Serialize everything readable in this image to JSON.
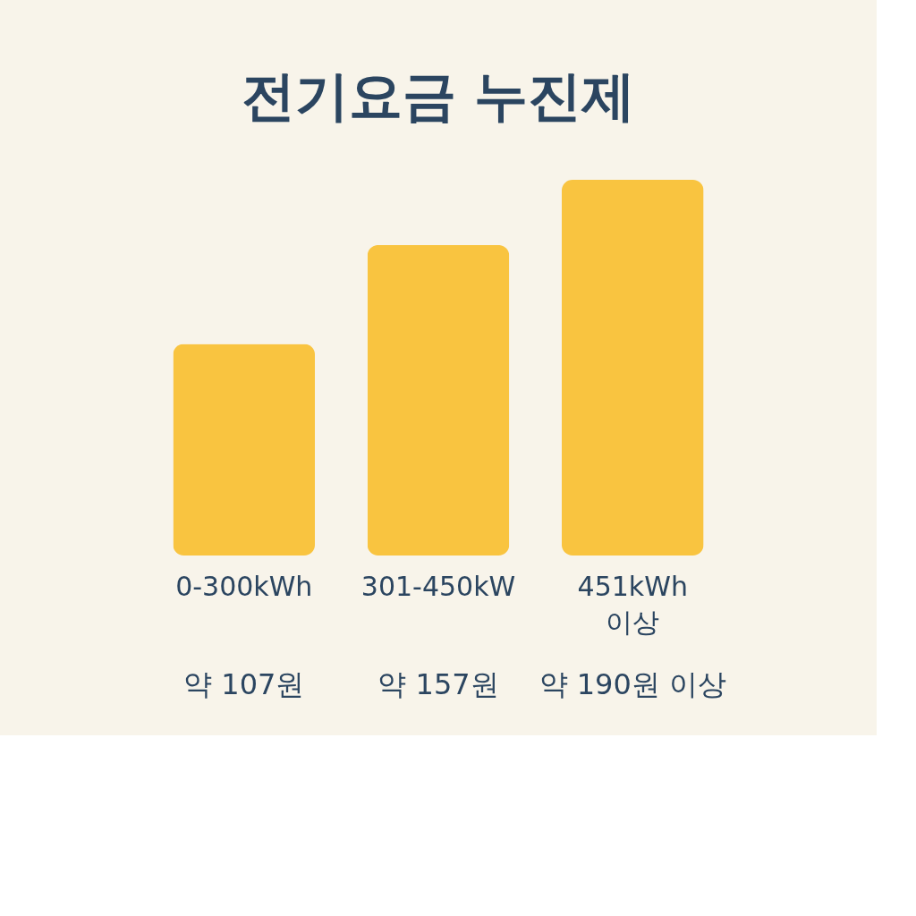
{
  "chart_data": {
    "type": "bar",
    "title": "전기요금 누진제",
    "categories": [
      "0-300kWh",
      "301-450kW",
      "451kWh 이상"
    ],
    "values": [
      107,
      157,
      190
    ],
    "value_labels": [
      "약 107원",
      "약 157원",
      "약 190원 이상"
    ],
    "color": "#f9c440",
    "grid": false
  }
}
